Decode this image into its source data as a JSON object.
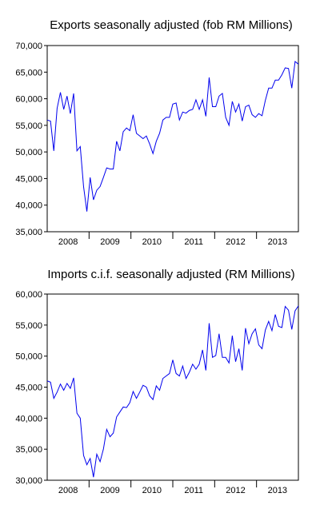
{
  "chart_data": [
    {
      "type": "line",
      "title": "Exports seasonally adjusted (fob RM Millions)",
      "xlabel": "",
      "ylabel": "",
      "ylim": [
        35000,
        70000
      ],
      "yticks": [
        35000,
        40000,
        45000,
        50000,
        55000,
        60000,
        65000,
        70000
      ],
      "ytick_labels": [
        "35,000",
        "40,000",
        "45,000",
        "50,000",
        "55,000",
        "60,000",
        "65,000",
        "70,000"
      ],
      "xticks": [
        "2008",
        "2009",
        "2010",
        "2011",
        "2012",
        "2013"
      ],
      "x_start": "2008-01",
      "x_end": "2013-12",
      "grid": false,
      "line_color": "#0000ee",
      "series": [
        {
          "values": [
            56000,
            55800,
            50200,
            58200,
            61200,
            58000,
            60500,
            57200,
            61000,
            50200,
            51000,
            43500,
            38800,
            45200,
            41000,
            42800,
            43500,
            45200,
            47000,
            46800,
            46800,
            52000,
            50200,
            53800,
            54500,
            54000,
            57000,
            53500,
            53000,
            52500,
            53000,
            51500,
            49700,
            52000,
            53500,
            56000,
            56500,
            56500,
            59000,
            59200,
            56000,
            57500,
            57300,
            57800,
            58000,
            59800,
            58000,
            59800,
            56700,
            64000,
            58500,
            58500,
            60500,
            61000,
            56500,
            55000,
            59500,
            57500,
            59000,
            55800,
            58500,
            58800,
            57000,
            56500,
            57200,
            56800,
            59700,
            62000,
            62000,
            63500,
            63500,
            64500,
            65800,
            65700,
            62000,
            67000,
            66500
          ]
        }
      ]
    },
    {
      "type": "line",
      "title": "Imports c.i.f. seasonally adjusted (RM Millions)",
      "xlabel": "",
      "ylabel": "",
      "ylim": [
        30000,
        60000
      ],
      "yticks": [
        30000,
        35000,
        40000,
        45000,
        50000,
        55000,
        60000
      ],
      "ytick_labels": [
        "30,000",
        "35,000",
        "40,000",
        "45,000",
        "50,000",
        "55,000",
        "60,000"
      ],
      "xticks": [
        "2008",
        "2009",
        "2010",
        "2011",
        "2012",
        "2013"
      ],
      "x_start": "2008-01",
      "x_end": "2013-12",
      "grid": false,
      "line_color": "#0000ee",
      "series": [
        {
          "values": [
            46000,
            45800,
            43200,
            44200,
            45500,
            44500,
            45600,
            44800,
            46500,
            40800,
            40000,
            34000,
            32500,
            33500,
            30500,
            34200,
            33000,
            35000,
            38200,
            37000,
            37600,
            40200,
            41000,
            41800,
            41700,
            42500,
            44300,
            43200,
            44200,
            45300,
            45000,
            43600,
            43000,
            45200,
            44500,
            46400,
            46800,
            47200,
            49400,
            47200,
            46800,
            48400,
            46400,
            47400,
            48700,
            47900,
            48700,
            51000,
            47700,
            55300,
            49800,
            50100,
            53600,
            49800,
            49800,
            48900,
            53300,
            49100,
            51200,
            47700,
            54500,
            52000,
            53600,
            54400,
            51800,
            51200,
            54200,
            55600,
            54100,
            56700,
            54800,
            54600,
            58000,
            57400,
            54300,
            57300,
            58100
          ]
        }
      ]
    }
  ]
}
